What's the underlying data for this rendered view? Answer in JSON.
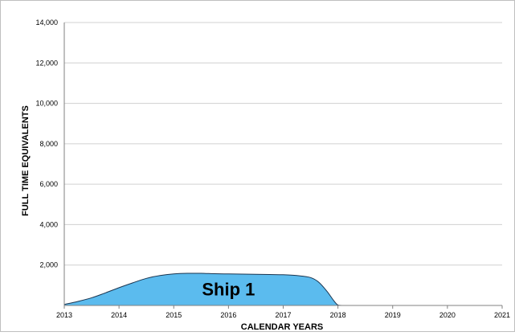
{
  "chart_data": {
    "type": "area",
    "xlabel": "CALENDAR YEARS",
    "ylabel": "FULL TIME EQUIVALENTS",
    "xlim": [
      2013,
      2021
    ],
    "ylim": [
      0,
      14000
    ],
    "x_ticks": [
      "2013",
      "2014",
      "2015",
      "2016",
      "2017",
      "2018",
      "2019",
      "2020",
      "2021"
    ],
    "y_ticks": [
      "2,000",
      "4,000",
      "6,000",
      "8,000",
      "10,000",
      "12,000",
      "14,000"
    ],
    "grid": true,
    "series": [
      {
        "name": "Ship 1",
        "color": "#5bbbee",
        "x": [
          2013.0,
          2013.25,
          2013.5,
          2013.75,
          2014.0,
          2014.25,
          2014.5,
          2014.75,
          2015.0,
          2015.25,
          2015.5,
          2015.75,
          2016.0,
          2016.25,
          2016.5,
          2016.75,
          2017.0,
          2017.25,
          2017.5,
          2017.65,
          2017.8,
          2017.92,
          2018.0,
          2018.1,
          2018.5,
          2019.0,
          2020.0,
          2021.0
        ],
        "values": [
          50,
          200,
          380,
          620,
          880,
          1120,
          1340,
          1480,
          1560,
          1590,
          1590,
          1570,
          1560,
          1550,
          1540,
          1530,
          1520,
          1480,
          1380,
          1150,
          700,
          250,
          20,
          0,
          0,
          0,
          0,
          0
        ]
      }
    ]
  }
}
